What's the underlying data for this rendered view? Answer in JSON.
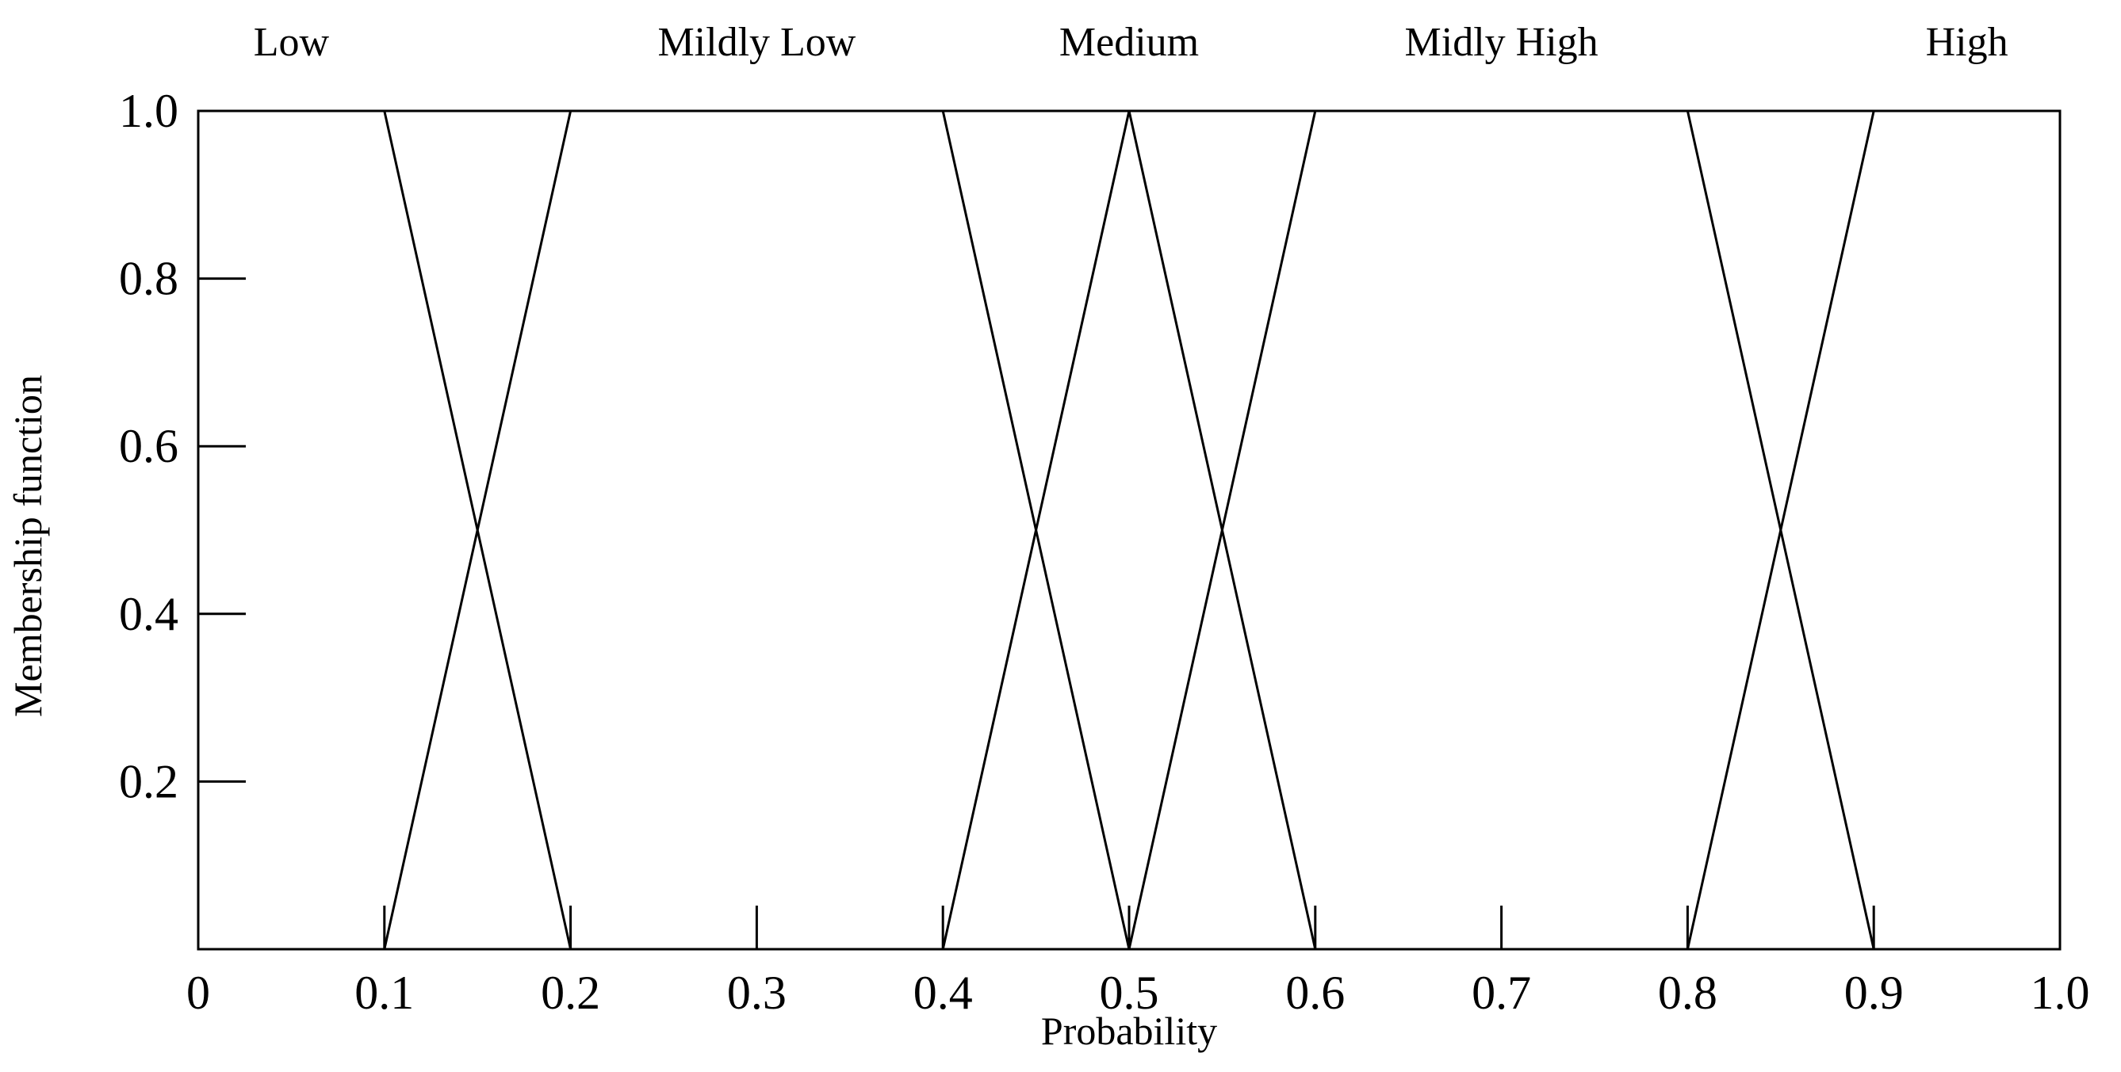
{
  "chart_data": {
    "type": "line",
    "xlabel": "Probability",
    "ylabel": "Membership function",
    "xlim": [
      0,
      1
    ],
    "ylim": [
      0,
      1
    ],
    "x_ticks": [
      0,
      0.1,
      0.2,
      0.3,
      0.4,
      0.5,
      0.6,
      0.7,
      0.8,
      0.9,
      1.0
    ],
    "x_tick_labels": [
      "0",
      "0.1",
      "0.2",
      "0.3",
      "0.4",
      "0.5",
      "0.6",
      "0.7",
      "0.8",
      "0.9",
      "1.0"
    ],
    "y_ticks": [
      0.2,
      0.4,
      0.6,
      0.8,
      1.0
    ],
    "y_tick_labels": [
      "0.2",
      "0.4",
      "0.6",
      "0.8",
      "1.0"
    ],
    "grid": false,
    "line_color": "#000000",
    "series": [
      {
        "name": "Low",
        "x": [
          0,
          0.1,
          0.2,
          1.0
        ],
        "y": [
          1,
          1,
          0,
          0
        ]
      },
      {
        "name": "Mildly Low",
        "x": [
          0.1,
          0.2,
          0.4,
          0.5
        ],
        "y": [
          0,
          1,
          1,
          0
        ]
      },
      {
        "name": "Medium",
        "x": [
          0.4,
          0.5,
          0.6
        ],
        "y": [
          0,
          1,
          0
        ]
      },
      {
        "name": "Midly High",
        "x": [
          0.5,
          0.6,
          0.8,
          0.9
        ],
        "y": [
          0,
          1,
          1,
          0
        ]
      },
      {
        "name": "High",
        "x": [
          0.8,
          0.9,
          1.0
        ],
        "y": [
          0,
          1,
          1
        ]
      }
    ]
  }
}
